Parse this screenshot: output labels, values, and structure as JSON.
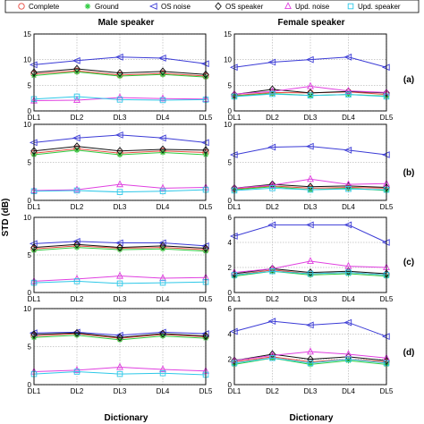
{
  "legend": {
    "items": [
      {
        "label": "Complete",
        "marker": "circle",
        "color": "#e8483f"
      },
      {
        "label": "Ground",
        "marker": "star",
        "color": "#2ecc40"
      },
      {
        "label": "OS noise",
        "marker": "triangle-left",
        "color": "#3b3bd6"
      },
      {
        "label": "OS speaker",
        "marker": "diamond",
        "color": "#111111"
      },
      {
        "label": "Upd. noise",
        "marker": "triangle-up",
        "color": "#e040e0"
      },
      {
        "label": "Upd. speaker",
        "marker": "square",
        "color": "#2ec8e8"
      }
    ]
  },
  "column_titles": [
    "Male speaker",
    "Female speaker"
  ],
  "row_tags": [
    "(a)",
    "(b)",
    "(c)",
    "(d)"
  ],
  "ylabel": "STD (dB)",
  "xlabel": "Dictionary",
  "chart_data": {
    "type": "line",
    "categories": [
      "DL1",
      "DL2",
      "DL3",
      "DL4",
      "DL5"
    ],
    "series_names": [
      "Complete",
      "Ground",
      "OS noise",
      "OS speaker",
      "Upd. noise",
      "Upd. speaker"
    ],
    "panels": [
      {
        "row": "(a)",
        "column": "Male speaker",
        "ylim": [
          0,
          15
        ],
        "yticks": [
          0,
          5,
          10,
          15
        ],
        "series": [
          {
            "name": "Complete",
            "values": [
              7.2,
              7.8,
              7.0,
              7.3,
              6.8
            ]
          },
          {
            "name": "Ground",
            "values": [
              6.9,
              7.6,
              6.8,
              7.1,
              6.6
            ]
          },
          {
            "name": "OS noise",
            "values": [
              9.0,
              9.8,
              10.5,
              10.3,
              9.2
            ]
          },
          {
            "name": "OS speaker",
            "values": [
              7.5,
              8.2,
              7.4,
              7.7,
              7.1
            ]
          },
          {
            "name": "Upd. noise",
            "values": [
              2.0,
              2.1,
              2.6,
              2.4,
              2.3
            ]
          },
          {
            "name": "Upd. speaker",
            "values": [
              2.3,
              2.8,
              2.2,
              2.1,
              2.2
            ]
          }
        ]
      },
      {
        "row": "(a)",
        "column": "Female speaker",
        "ylim": [
          0,
          15
        ],
        "yticks": [
          0,
          5,
          10,
          15
        ],
        "series": [
          {
            "name": "Complete",
            "values": [
              3.0,
              3.6,
              3.5,
              3.7,
              3.2
            ]
          },
          {
            "name": "Ground",
            "values": [
              2.9,
              3.4,
              3.0,
              3.2,
              2.9
            ]
          },
          {
            "name": "OS noise",
            "values": [
              8.5,
              9.5,
              10.0,
              10.5,
              8.5
            ]
          },
          {
            "name": "OS speaker",
            "values": [
              3.2,
              4.2,
              3.5,
              3.8,
              3.5
            ]
          },
          {
            "name": "Upd. noise",
            "values": [
              3.3,
              3.8,
              4.8,
              3.9,
              3.6
            ]
          },
          {
            "name": "Upd. speaker",
            "values": [
              2.8,
              3.3,
              3.0,
              3.2,
              2.8
            ]
          }
        ]
      },
      {
        "row": "(b)",
        "column": "Male speaker",
        "ylim": [
          0,
          10
        ],
        "yticks": [
          0,
          5,
          10
        ],
        "series": [
          {
            "name": "Complete",
            "values": [
              6.2,
              6.8,
              6.2,
              6.5,
              6.3
            ]
          },
          {
            "name": "Ground",
            "values": [
              6.0,
              6.6,
              6.0,
              6.3,
              6.0
            ]
          },
          {
            "name": "OS noise",
            "values": [
              7.6,
              8.2,
              8.6,
              8.2,
              7.6
            ]
          },
          {
            "name": "OS speaker",
            "values": [
              6.5,
              7.1,
              6.5,
              6.7,
              6.6
            ]
          },
          {
            "name": "Upd. noise",
            "values": [
              1.3,
              1.4,
              2.1,
              1.6,
              1.7
            ]
          },
          {
            "name": "Upd. speaker",
            "values": [
              1.2,
              1.3,
              1.1,
              1.2,
              1.4
            ]
          }
        ]
      },
      {
        "row": "(b)",
        "column": "Female speaker",
        "ylim": [
          0,
          10
        ],
        "yticks": [
          0,
          5,
          10
        ],
        "series": [
          {
            "name": "Complete",
            "values": [
              1.5,
              1.9,
              1.6,
              1.7,
              1.6
            ]
          },
          {
            "name": "Ground",
            "values": [
              1.4,
              1.8,
              1.4,
              1.6,
              1.3
            ]
          },
          {
            "name": "OS noise",
            "values": [
              6.0,
              7.0,
              7.1,
              6.6,
              6.0
            ]
          },
          {
            "name": "OS speaker",
            "values": [
              1.6,
              2.1,
              1.8,
              1.9,
              1.7
            ]
          },
          {
            "name": "Upd. noise",
            "values": [
              1.6,
              2.0,
              2.8,
              2.1,
              2.2
            ]
          },
          {
            "name": "Upd. speaker",
            "values": [
              1.3,
              1.6,
              1.4,
              1.5,
              1.4
            ]
          }
        ]
      },
      {
        "row": "(c)",
        "column": "Male speaker",
        "ylim": [
          0,
          10
        ],
        "yticks": [
          0,
          5,
          10
        ],
        "series": [
          {
            "name": "Complete",
            "values": [
              5.8,
              6.2,
              5.9,
              6.0,
              5.7
            ]
          },
          {
            "name": "Ground",
            "values": [
              5.6,
              6.0,
              5.7,
              5.8,
              5.5
            ]
          },
          {
            "name": "OS noise",
            "values": [
              6.5,
              6.8,
              6.6,
              6.6,
              6.2
            ]
          },
          {
            "name": "OS speaker",
            "values": [
              6.0,
              6.4,
              6.0,
              6.2,
              5.9
            ]
          },
          {
            "name": "Upd. noise",
            "values": [
              1.5,
              1.8,
              2.2,
              1.9,
              2.0
            ]
          },
          {
            "name": "Upd. speaker",
            "values": [
              1.3,
              1.5,
              1.2,
              1.3,
              1.4
            ]
          }
        ]
      },
      {
        "row": "(c)",
        "column": "Female speaker",
        "ylim": [
          0,
          6
        ],
        "yticks": [
          0,
          2,
          4,
          6
        ],
        "series": [
          {
            "name": "Complete",
            "values": [
              1.4,
              1.8,
              1.5,
              1.6,
              1.4
            ]
          },
          {
            "name": "Ground",
            "values": [
              1.3,
              1.7,
              1.4,
              1.5,
              1.3
            ]
          },
          {
            "name": "OS noise",
            "values": [
              4.5,
              5.4,
              5.4,
              5.4,
              4.0
            ]
          },
          {
            "name": "OS speaker",
            "values": [
              1.5,
              1.9,
              1.6,
              1.7,
              1.5
            ]
          },
          {
            "name": "Upd. noise",
            "values": [
              1.6,
              1.9,
              2.5,
              2.1,
              2.0
            ]
          },
          {
            "name": "Upd. speaker",
            "values": [
              1.4,
              1.7,
              1.5,
              1.6,
              1.4
            ]
          }
        ]
      },
      {
        "row": "(d)",
        "column": "Male speaker",
        "ylim": [
          0,
          10
        ],
        "yticks": [
          0,
          5,
          10
        ],
        "series": [
          {
            "name": "Complete",
            "values": [
              6.4,
              6.7,
              6.1,
              6.6,
              6.3
            ]
          },
          {
            "name": "Ground",
            "values": [
              6.2,
              6.5,
              5.9,
              6.4,
              6.1
            ]
          },
          {
            "name": "OS noise",
            "values": [
              6.8,
              6.9,
              6.5,
              6.9,
              6.7
            ]
          },
          {
            "name": "OS speaker",
            "values": [
              6.6,
              6.8,
              6.2,
              6.7,
              6.4
            ]
          },
          {
            "name": "Upd. noise",
            "values": [
              1.7,
              1.9,
              2.3,
              2.0,
              1.8
            ]
          },
          {
            "name": "Upd. speaker",
            "values": [
              1.4,
              1.7,
              1.4,
              1.5,
              1.3
            ]
          }
        ]
      },
      {
        "row": "(d)",
        "column": "Female speaker",
        "ylim": [
          0,
          6
        ],
        "yticks": [
          0,
          2,
          4,
          6
        ],
        "series": [
          {
            "name": "Complete",
            "values": [
              1.8,
              2.2,
              1.8,
              2.0,
              1.8
            ]
          },
          {
            "name": "Ground",
            "values": [
              1.6,
              2.1,
              1.6,
              1.9,
              1.6
            ]
          },
          {
            "name": "OS noise",
            "values": [
              4.2,
              5.0,
              4.7,
              4.9,
              3.8
            ]
          },
          {
            "name": "OS speaker",
            "values": [
              1.9,
              2.4,
              2.0,
              2.2,
              1.9
            ]
          },
          {
            "name": "Upd. noise",
            "values": [
              1.9,
              2.3,
              2.6,
              2.4,
              2.1
            ]
          },
          {
            "name": "Upd. speaker",
            "values": [
              1.7,
              2.1,
              1.7,
              2.0,
              1.7
            ]
          }
        ]
      }
    ]
  }
}
